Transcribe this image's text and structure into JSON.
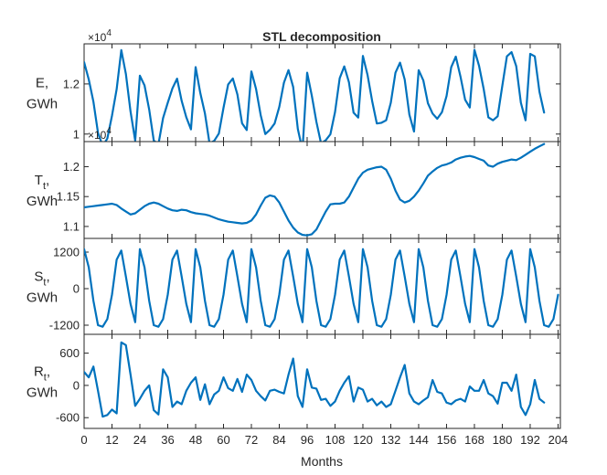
{
  "chart_data": {
    "type": "line",
    "title": "STL decomposition",
    "xlabel": "Months",
    "xlim": [
      0,
      205
    ],
    "xticks": [
      0,
      12,
      24,
      36,
      48,
      60,
      72,
      84,
      96,
      108,
      120,
      132,
      144,
      156,
      168,
      180,
      192,
      204
    ],
    "x_tick_labels": [
      "0",
      "12",
      "24",
      "36",
      "48",
      "60",
      "72",
      "84",
      "96",
      "108",
      "120",
      "132",
      "144",
      "156",
      "168",
      "180",
      "192",
      "204"
    ],
    "color": "#0072BD",
    "panels": [
      {
        "name": "E",
        "ylabel": [
          "E,",
          "GWh"
        ],
        "ylim": [
          9700,
          13600
        ],
        "yticks": [
          10000,
          12000
        ],
        "ytick_labels": [
          "1",
          "1.2"
        ],
        "exponent_label": "×10",
        "exponent_power": "4",
        "trend": [
          11320,
          11330,
          11340,
          11350,
          11360,
          11370,
          11380,
          11360,
          11300,
          11250,
          11200,
          11220,
          11280,
          11340,
          11380,
          11400,
          11380,
          11340,
          11300,
          11270,
          11260,
          11280,
          11270,
          11240,
          11220,
          11210,
          11200,
          11180,
          11150,
          11120,
          11100,
          11080,
          11070,
          11060,
          11050,
          11060,
          11100,
          11200,
          11350,
          11480,
          11520,
          11500,
          11400,
          11250,
          11100,
          10980,
          10900,
          10860,
          10850,
          10870,
          10950,
          11100,
          11250,
          11370,
          11380,
          11380,
          11400,
          11500,
          11650,
          11800,
          11900,
          11950,
          11970,
          11990,
          12000,
          11950,
          11800,
          11600,
          11450,
          11400,
          11430,
          11500,
          11600,
          11720,
          11850,
          11920,
          11980,
          12020,
          12040,
          12070,
          12120,
          12150,
          12170,
          12180,
          12160,
          12130,
          12100,
          12020,
          12000,
          12050,
          12080,
          12100,
          12120,
          12110,
          12150,
          12200,
          12250,
          12300,
          12340,
          12380
        ],
        "season_amp": 1250,
        "resid_amp": 300,
        "values": []
      },
      {
        "name": "T",
        "ylabel": [
          "T",
          "t",
          ",",
          "GWh"
        ],
        "ylim": [
          10800,
          12420
        ],
        "yticks": [
          11000,
          11500,
          12000
        ],
        "ytick_labels": [
          "1.1",
          "1.15",
          "1.2"
        ],
        "exponent_label": "×10",
        "exponent_power": "4",
        "values": [
          11320,
          11330,
          11340,
          11350,
          11360,
          11370,
          11380,
          11360,
          11300,
          11250,
          11200,
          11220,
          11280,
          11340,
          11380,
          11400,
          11380,
          11340,
          11300,
          11270,
          11260,
          11280,
          11270,
          11240,
          11220,
          11210,
          11200,
          11180,
          11150,
          11120,
          11100,
          11080,
          11070,
          11060,
          11050,
          11060,
          11100,
          11200,
          11350,
          11480,
          11520,
          11500,
          11400,
          11250,
          11100,
          10980,
          10900,
          10860,
          10850,
          10870,
          10950,
          11100,
          11250,
          11370,
          11380,
          11380,
          11400,
          11500,
          11650,
          11800,
          11900,
          11950,
          11970,
          11990,
          12000,
          11950,
          11800,
          11600,
          11450,
          11400,
          11430,
          11500,
          11600,
          11720,
          11850,
          11920,
          11980,
          12020,
          12040,
          12070,
          12120,
          12150,
          12170,
          12180,
          12160,
          12130,
          12100,
          12020,
          12000,
          12050,
          12080,
          12100,
          12120,
          12110,
          12150,
          12200,
          12250,
          12300,
          12340,
          12380
        ]
      },
      {
        "name": "S",
        "ylabel": [
          "S",
          "t",
          ",",
          "GWh"
        ],
        "ylim": [
          -1500,
          1650
        ],
        "yticks": [
          -1200,
          0,
          1200
        ],
        "ytick_labels": [
          "-1200",
          "0",
          "1200"
        ],
        "pattern": [
          1300,
          700,
          -400,
          -1200,
          -1250,
          -1000,
          -200,
          950,
          1250,
          400,
          -500,
          -1100
        ],
        "values": []
      },
      {
        "name": "R",
        "ylabel": [
          "R",
          "t",
          ",",
          "GWh"
        ],
        "ylim": [
          -800,
          950
        ],
        "yticks": [
          -600,
          0,
          600
        ],
        "ytick_labels": [
          "-600",
          "0",
          "600"
        ],
        "values": [
          250,
          150,
          350,
          -100,
          -580,
          -550,
          -450,
          -520,
          800,
          750,
          200,
          -380,
          -250,
          -100,
          0,
          -460,
          -540,
          300,
          150,
          -400,
          -300,
          -350,
          -100,
          50,
          150,
          -270,
          20,
          -350,
          -170,
          -100,
          150,
          -50,
          -100,
          120,
          -120,
          200,
          100,
          -100,
          -200,
          -280,
          -100,
          -80,
          -120,
          -150,
          200,
          500,
          -200,
          -400,
          300,
          -40,
          -60,
          -270,
          -250,
          -380,
          -300,
          -100,
          50,
          170,
          -300,
          -40,
          -80,
          -300,
          -250,
          -370,
          -300,
          -400,
          -350,
          -100,
          150,
          380,
          -150,
          -300,
          -350,
          -280,
          -220,
          100,
          -120,
          -150,
          -320,
          -350,
          -280,
          -250,
          -300,
          -20,
          -100,
          -100,
          100,
          -150,
          -200,
          -340,
          50,
          50,
          -100,
          200,
          -400,
          -550,
          -350,
          100,
          -250,
          -320
        ]
      }
    ]
  }
}
